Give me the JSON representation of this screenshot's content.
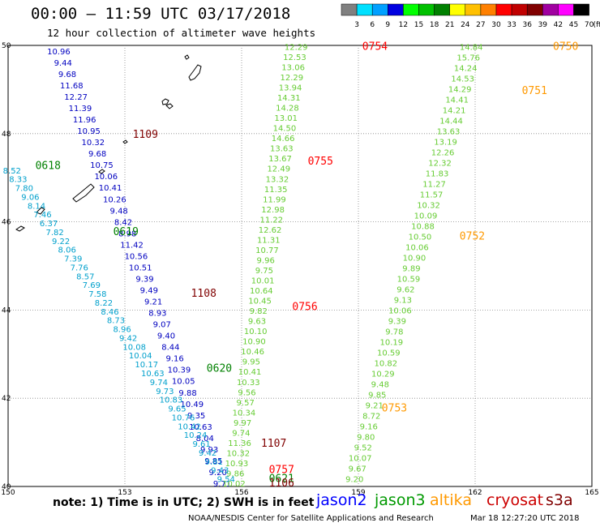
{
  "title": "00:00 – 11:59 UTC 03/17/2018",
  "subtitle": "12 hour collection of altimeter wave heights",
  "colorbar": {
    "labels": [
      "3",
      "6",
      "9",
      "12",
      "15",
      "18",
      "21",
      "24",
      "27",
      "30",
      "33",
      "36",
      "39",
      "42",
      "45",
      "70",
      "(ft)"
    ],
    "colors": [
      "#808080",
      "#00e0ff",
      "#00a0ff",
      "#0000e0",
      "#00ff00",
      "#00c000",
      "#008000",
      "#ffff00",
      "#ffc000",
      "#ff8000",
      "#ff0000",
      "#c00000",
      "#800000",
      "#a000a0",
      "#ff00ff",
      "#000000"
    ]
  },
  "axes": {
    "lon_ticks": [
      "150",
      "153",
      "156",
      "159",
      "162",
      "165"
    ],
    "lat_ticks": [
      "50",
      "48",
      "46",
      "44",
      "42",
      "40"
    ],
    "lon_range": [
      150,
      165
    ],
    "lat_range": [
      40,
      50
    ]
  },
  "pass_labels": [
    {
      "text": "0754",
      "color": "#ff0000",
      "lon": 159.1,
      "lat": 49.9
    },
    {
      "text": "0750",
      "color": "#ff9900",
      "lon": 164.0,
      "lat": 49.9
    },
    {
      "text": "0751",
      "color": "#ff9900",
      "lon": 163.2,
      "lat": 48.9
    },
    {
      "text": "1109",
      "color": "#800000",
      "lon": 153.2,
      "lat": 47.9
    },
    {
      "text": "0618",
      "color": "#008000",
      "lon": 150.7,
      "lat": 47.2
    },
    {
      "text": "0755",
      "color": "#ff0000",
      "lon": 157.7,
      "lat": 47.3
    },
    {
      "text": "0619",
      "color": "#008000",
      "lon": 152.7,
      "lat": 45.7
    },
    {
      "text": "0752",
      "color": "#ff9900",
      "lon": 161.6,
      "lat": 45.6
    },
    {
      "text": "1108",
      "color": "#800000",
      "lon": 154.7,
      "lat": 44.3
    },
    {
      "text": "0756",
      "color": "#ff0000",
      "lon": 157.3,
      "lat": 44.0
    },
    {
      "text": "0620",
      "color": "#008000",
      "lon": 155.1,
      "lat": 42.6
    },
    {
      "text": "0753",
      "color": "#ff9900",
      "lon": 159.6,
      "lat": 41.7
    },
    {
      "text": "1107",
      "color": "#800000",
      "lon": 156.5,
      "lat": 40.9
    },
    {
      "text": "0757",
      "color": "#ff0000",
      "lon": 156.7,
      "lat": 40.3
    },
    {
      "text": "0621",
      "color": "#008000",
      "lon": 156.7,
      "lat": 40.1
    },
    {
      "text": "1106",
      "color": "#800000",
      "lon": 156.7,
      "lat": 40.0
    }
  ],
  "tracks": [
    {
      "name": "1109-1108",
      "color": "#0000c0",
      "start": [
        151.3,
        49.8
      ],
      "end": [
        155.5,
        40.0
      ],
      "values": [
        "10.96",
        "9.44",
        "9.68",
        "11.68",
        "12.27",
        "11.39",
        "11.96",
        "10.95",
        "10.32",
        "9.68",
        "10.75",
        "10.06",
        "10.41",
        "10.26",
        "9.48",
        "8.42",
        "8.98",
        "11.42",
        "10.56",
        "10.51",
        "9.39",
        "9.49",
        "9.21",
        "8.93",
        "9.07",
        "9.40",
        "8.44",
        "9.16",
        "10.39",
        "10.05",
        "9.88",
        "10.49",
        "9.35",
        "10.63",
        "8.04",
        "9.93",
        "9.85",
        "9.20",
        "9.71"
      ]
    },
    {
      "name": "0754-0757",
      "color": "#66cc33",
      "start": [
        157.4,
        49.9
      ],
      "end": [
        155.8,
        40.0
      ],
      "values": [
        "12.29",
        "12.53",
        "13.06",
        "12.29",
        "13.94",
        "14.31",
        "14.28",
        "13.01",
        "14.50",
        "14.66",
        "13.63",
        "13.67",
        "12.49",
        "13.32",
        "11.35",
        "11.99",
        "12.98",
        "11.22",
        "12.62",
        "11.31",
        "10.77",
        "9.96",
        "9.75",
        "10.01",
        "10.64",
        "10.45",
        "9.82",
        "9.63",
        "10.10",
        "10.90",
        "10.46",
        "9.95",
        "10.41",
        "10.33",
        "9.56",
        "9.57",
        "10.34",
        "9.97",
        "9.74",
        "11.36",
        "10.32",
        "10.93",
        "9.86",
        "10.02"
      ]
    },
    {
      "name": "0750-0753",
      "color": "#66cc33",
      "start": [
        161.9,
        49.9
      ],
      "end": [
        158.9,
        40.1
      ],
      "values": [
        "14.84",
        "15.76",
        "14.24",
        "14.53",
        "14.29",
        "14.41",
        "14.21",
        "14.44",
        "13.63",
        "13.19",
        "12.26",
        "12.32",
        "11.83",
        "11.27",
        "11.57",
        "10.32",
        "10.09",
        "10.88",
        "10.50",
        "10.06",
        "10.90",
        "9.89",
        "10.59",
        "9.62",
        "9.13",
        "10.06",
        "9.39",
        "9.78",
        "10.19",
        "10.59",
        "10.82",
        "10.29",
        "9.48",
        "9.85",
        "9.21",
        "8.72",
        "9.16",
        "9.80",
        "9.52",
        "10.07",
        "9.67",
        "9.20"
      ]
    },
    {
      "name": "0618-0621",
      "color": "#00a0cc",
      "start": [
        150.1,
        47.1
      ],
      "end": [
        155.6,
        40.1
      ],
      "values": [
        "8.52",
        "8.33",
        "7.80",
        "9.06",
        "8.14",
        "7.46",
        "6.37",
        "7.82",
        "9.22",
        "8.06",
        "7.39",
        "7.76",
        "8.57",
        "7.69",
        "7.58",
        "8.22",
        "8.46",
        "8.73",
        "8.96",
        "9.42",
        "10.08",
        "10.04",
        "10.17",
        "10.63",
        "9.74",
        "9.73",
        "10.83",
        "9.65",
        "10.76",
        "10.42",
        "10.24",
        "9.61",
        "9.42",
        "9.81",
        "9.43",
        "9.54"
      ]
    }
  ],
  "note": "note: 1) Time is in UTC; 2) SWH is in feet",
  "legend": [
    {
      "label": "jason2",
      "color": "#0000ff"
    },
    {
      "label": "jason3",
      "color": "#009900"
    },
    {
      "label": "altika",
      "color": "#ff9900"
    },
    {
      "label": "cryosat",
      "color": "#cc0000"
    },
    {
      "label": "s3a",
      "color": "#800000"
    }
  ],
  "footer_center": "NOAA/NESDIS Center for Satellite Applications and Research",
  "footer_right": "Mar 18 12:27:20 UTC 2018"
}
